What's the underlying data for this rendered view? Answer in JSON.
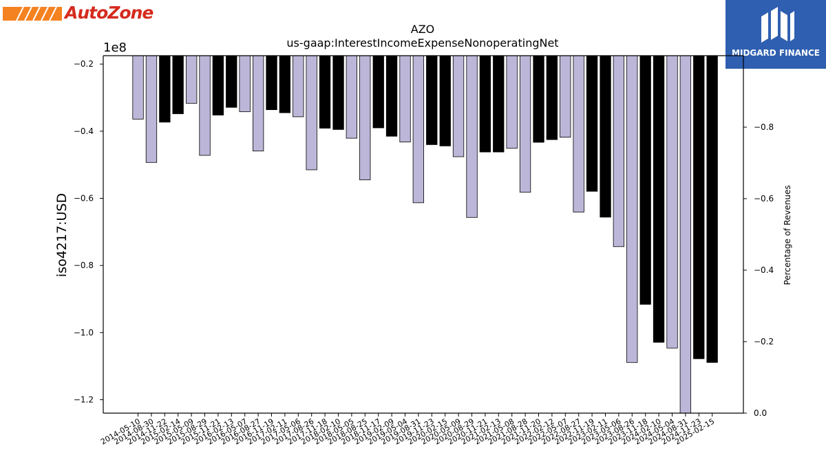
{
  "logos": {
    "left_brand": "AutoZone",
    "right_brand": "MIDGARD FINANCE",
    "left_icon": "autozone-stripes-logo",
    "right_icon": "midgard-m-logo"
  },
  "colors": {
    "bar_light": "#bcb7d8",
    "bar_dark": "#000000",
    "autozone_orange": "#f58220",
    "autozone_red": "#d52b1e",
    "midgard_blue": "#2f5fb0"
  },
  "chart_data": {
    "type": "bar",
    "title": "AZO",
    "subtitle": "us-gaap:InterestIncomeExpenseNonoperatingNet",
    "ylabel": "iso4217:USD",
    "y_offset_label": "1e8",
    "y2label": "Percentage of Revenues",
    "ylim": [
      -1.24,
      -0.175
    ],
    "yticks": [
      -0.2,
      -0.4,
      -0.6,
      -0.8,
      -1.0,
      -1.2
    ],
    "y2lim": [
      0.0,
      1.0
    ],
    "y2ticks": [
      0.0,
      -0.2,
      -0.4,
      -0.6,
      -0.8
    ],
    "grid": false,
    "categories": [
      "2014-05-10",
      "2014-08-30",
      "2014-11-22",
      "2015-02-14",
      "2015-05-09",
      "2015-08-29",
      "2015-11-21",
      "2016-02-13",
      "2016-05-07",
      "2016-08-27",
      "2016-11-19",
      "2017-02-11",
      "2017-05-06",
      "2017-08-26",
      "2017-11-18",
      "2018-02-10",
      "2018-05-05",
      "2018-08-25",
      "2018-11-17",
      "2019-02-09",
      "2019-05-04",
      "2019-08-31",
      "2019-11-23",
      "2020-02-15",
      "2020-05-09",
      "2020-08-29",
      "2020-11-21",
      "2021-02-13",
      "2021-05-08",
      "2021-08-28",
      "2021-11-20",
      "2022-02-12",
      "2022-05-07",
      "2022-08-27",
      "2022-11-19",
      "2023-02-11",
      "2023-05-06",
      "2023-08-26",
      "2023-11-18",
      "2024-02-10",
      "2024-05-04",
      "2024-08-31",
      "2024-11-23",
      "2025-02-15"
    ],
    "values": [
      -0.364,
      -0.493,
      -0.373,
      -0.348,
      -0.317,
      -0.472,
      -0.352,
      -0.329,
      -0.342,
      -0.459,
      -0.336,
      -0.345,
      -0.357,
      -0.515,
      -0.391,
      -0.395,
      -0.421,
      -0.545,
      -0.39,
      -0.415,
      -0.432,
      -0.613,
      -0.44,
      -0.444,
      -0.476,
      -0.657,
      -0.462,
      -0.462,
      -0.451,
      -0.582,
      -0.433,
      -0.425,
      -0.418,
      -0.641,
      -0.579,
      -0.656,
      -0.744,
      -1.089,
      -0.916,
      -1.029,
      -1.046,
      -1.24,
      -1.078,
      -1.089
    ],
    "bar_shades": [
      "light",
      "light",
      "dark",
      "dark",
      "light",
      "light",
      "dark",
      "dark",
      "light",
      "light",
      "dark",
      "dark",
      "light",
      "light",
      "dark",
      "dark",
      "light",
      "light",
      "dark",
      "dark",
      "light",
      "light",
      "dark",
      "dark",
      "light",
      "light",
      "dark",
      "dark",
      "light",
      "light",
      "dark",
      "dark",
      "light",
      "light",
      "dark",
      "dark",
      "light",
      "light",
      "dark",
      "dark",
      "light",
      "light",
      "dark",
      "dark"
    ]
  }
}
